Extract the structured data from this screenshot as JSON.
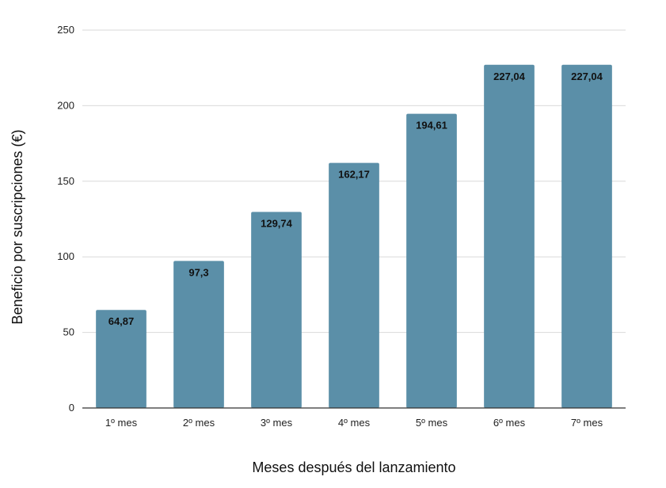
{
  "chart_data": {
    "type": "bar",
    "title": "",
    "xlabel": "Meses después del lanzamiento",
    "ylabel": "Beneficio por suscripciones (€)",
    "categories": [
      "1º mes",
      "2º mes",
      "3º mes",
      "4º mes",
      "5º mes",
      "6º mes",
      "7º mes"
    ],
    "values": [
      64.87,
      97.3,
      129.74,
      162.17,
      194.61,
      227.04,
      227.04
    ],
    "data_labels": [
      "64,87",
      "97,3",
      "129,74",
      "162,17",
      "194,61",
      "227,04",
      "227,04"
    ],
    "ylim": [
      0,
      250
    ],
    "yticks": [
      0,
      50,
      100,
      150,
      200,
      250
    ],
    "ytick_labels": [
      "0",
      "50",
      "100",
      "150",
      "200",
      "250"
    ],
    "grid": true,
    "legend": "none",
    "colors": {
      "bar": "#5b8fa8",
      "grid": "#d9d9d9",
      "axis": "#333333"
    }
  }
}
